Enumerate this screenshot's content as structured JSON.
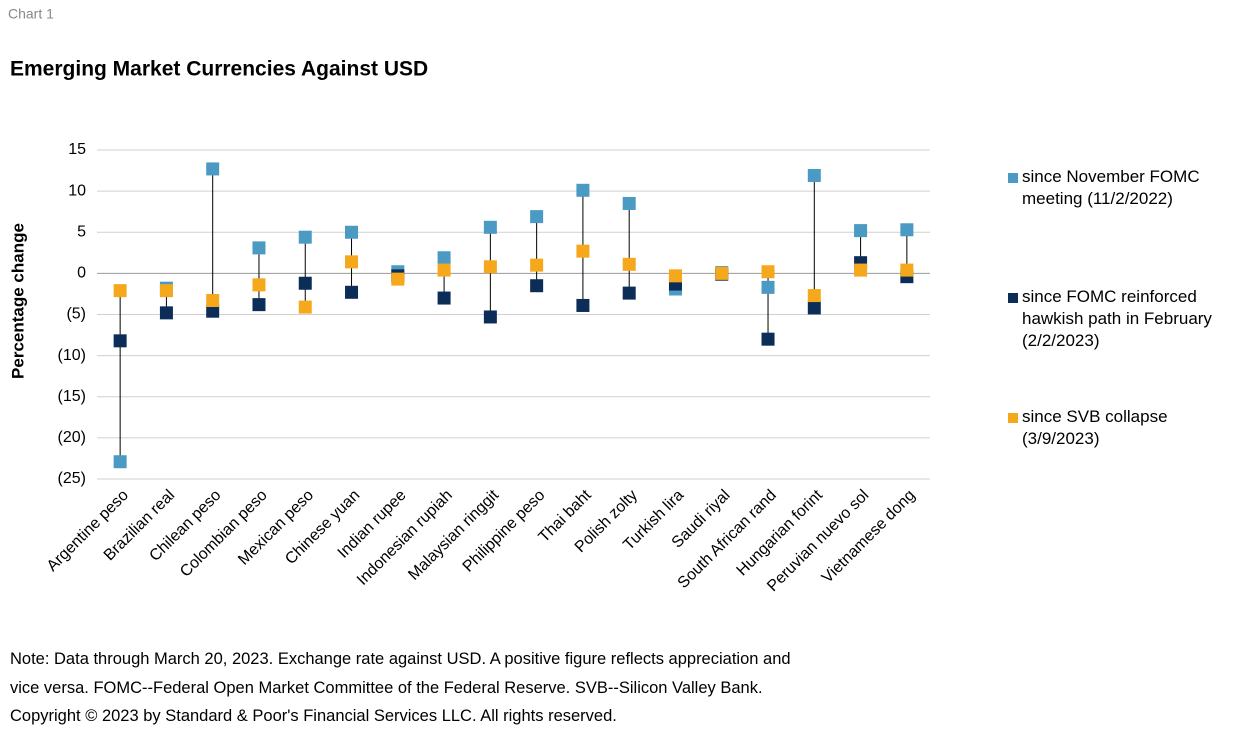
{
  "chart_data": {
    "type": "scatter",
    "label": "Chart 1",
    "title": "Emerging Market Currencies Against USD",
    "y_label": "Percentage change",
    "categories": [
      "Argentine peso",
      "Brazilian real",
      "Chilean peso",
      "Colombian peso",
      "Mexican peso",
      "Chinese yuan",
      "Indian rupee",
      "Indonesian rupiah",
      "Malaysian ringgit",
      "Philippine peso",
      "Thai baht",
      "Polish zolty",
      "Turkish lira",
      "Saudi riyal",
      "South African rand",
      "Hungarian forint",
      "Peruvian nuevo sol",
      "Vietnamese dong"
    ],
    "series": [
      {
        "name": "since November FOMC meeting (11/2/2022)",
        "color": "#4a9ac4",
        "values": [
          -22.9,
          -1.8,
          12.7,
          3.1,
          4.4,
          5.0,
          0.2,
          1.9,
          5.6,
          6.9,
          10.1,
          8.5,
          -1.9,
          0.1,
          -1.7,
          11.9,
          5.2,
          5.3
        ]
      },
      {
        "name": "since FOMC reinforced hawkish path in February (2/2/2023)",
        "color": "#0c2d57",
        "values": [
          -8.2,
          -4.8,
          -4.6,
          -3.8,
          -1.2,
          -2.3,
          -0.3,
          -3.0,
          -5.3,
          -1.5,
          -3.9,
          -2.4,
          -1.3,
          -0.1,
          -8.0,
          -4.2,
          1.3,
          -0.4
        ]
      },
      {
        "name": "since SVB collapse (3/9/2023)",
        "color": "#f5a81c",
        "values": [
          -2.1,
          -2.1,
          -3.3,
          -1.4,
          -4.1,
          1.4,
          -0.7,
          0.4,
          0.8,
          1.0,
          2.7,
          1.1,
          -0.3,
          0.0,
          0.2,
          -2.7,
          0.4,
          0.4
        ]
      }
    ],
    "ylim": [
      -25,
      15
    ],
    "yticks": [
      {
        "value": -25,
        "label": "(25)"
      },
      {
        "value": -20,
        "label": "(20)"
      },
      {
        "value": -15,
        "label": "(15)"
      },
      {
        "value": -10,
        "label": "(10)"
      },
      {
        "value": -5,
        "label": "(5)"
      },
      0,
      5,
      10,
      15
    ],
    "grid": true,
    "legend": "right",
    "high_low_lines": true,
    "note": [
      "Note: Data through March 20, 2023. Exchange rate against USD. A positive figure reflects appreciation and",
      "vice versa. FOMC--Federal Open Market Committee of the Federal Reserve. SVB--Silicon Valley Bank.",
      "Copyright © 2023 by Standard & Poor's Financial Services LLC. All rights reserved."
    ]
  }
}
